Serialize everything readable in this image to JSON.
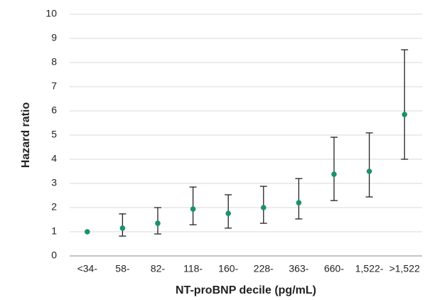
{
  "chart_data": {
    "type": "errorbar",
    "x_label": "NT-proBNP decile (pg/mL)",
    "y_label": "Hazard ratio",
    "categories": [
      "<34-",
      "58-",
      "82-",
      "118-",
      "160-",
      "228-",
      "363-",
      "660-",
      "1,522-",
      ">1,522"
    ],
    "values": [
      1.0,
      1.15,
      1.35,
      1.94,
      1.76,
      2.0,
      2.2,
      3.38,
      3.5,
      5.85
    ],
    "lower": [
      null,
      0.82,
      0.91,
      1.29,
      1.15,
      1.35,
      1.53,
      2.29,
      2.44,
      4.0
    ],
    "upper": [
      null,
      1.74,
      2.0,
      2.85,
      2.53,
      2.88,
      3.2,
      4.91,
      5.09,
      8.53
    ],
    "color": "#1a9363",
    "ylim": [
      0,
      10
    ],
    "yticks": [
      0,
      1,
      2,
      3,
      4,
      5,
      6,
      7,
      8,
      9,
      10
    ],
    "grid": true
  }
}
